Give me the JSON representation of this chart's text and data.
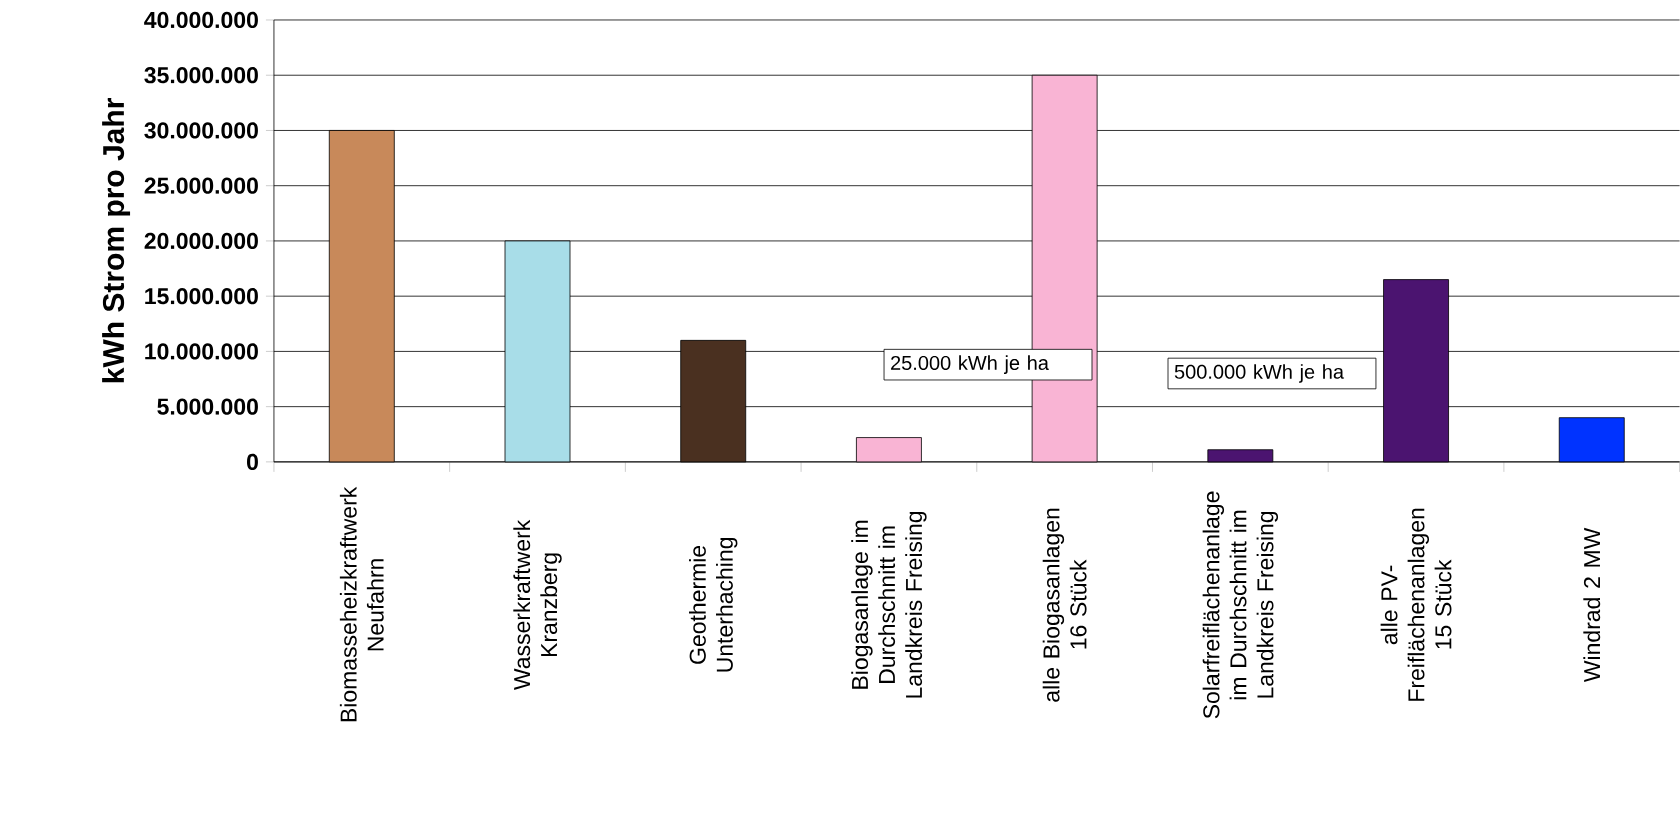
{
  "chart_data": {
    "type": "bar",
    "ylabel": "kWh Strom pro Jahr",
    "categories": [
      "Biomasseheizkraftwerk Neufahrn",
      "Wasserkraftwerk Kranzberg",
      "Geothermie Unterhaching",
      "Biogasanlage im Durchschnitt im Landkreis Freising",
      "alle Biogasanlagen 16 Stück",
      "Solarfreiflächenanlage im Durchschnitt im Landkreis Freising",
      "alle PV-Freiflächenanlagen 15 Stück",
      "Windrad 2 MW"
    ],
    "values": [
      30000000,
      20000000,
      11000000,
      2200000,
      35000000,
      1100000,
      16500000,
      4000000
    ],
    "colors": [
      "#c8895a",
      "#a8dde8",
      "#4a3020",
      "#f9b4d4",
      "#f9b4d4",
      "#4b1470",
      "#4b1470",
      "#0033ff"
    ],
    "ylim": [
      0,
      40000000
    ],
    "yticks": [
      {
        "value": 0,
        "label": "0"
      },
      {
        "value": 5000000,
        "label": "5.000.000"
      },
      {
        "value": 10000000,
        "label": "10.000.000"
      },
      {
        "value": 15000000,
        "label": "15.000.000"
      },
      {
        "value": 20000000,
        "label": "20.000.000"
      },
      {
        "value": 25000000,
        "label": "25.000.000"
      },
      {
        "value": 30000000,
        "label": "30.000.000"
      },
      {
        "value": 35000000,
        "label": "35.000.000"
      },
      {
        "value": 40000000,
        "label": "40.000.000"
      }
    ],
    "grid": "y",
    "annotations": [
      "25.000 kWh je ha",
      "500.000 kWh je ha"
    ]
  }
}
